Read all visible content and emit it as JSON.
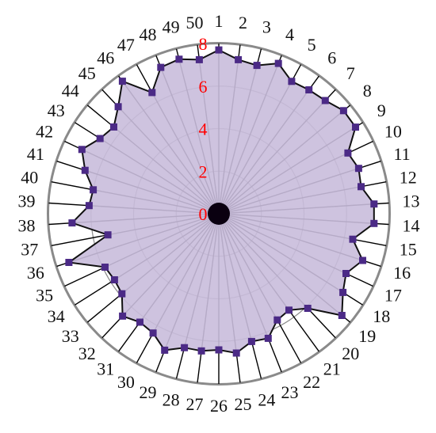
{
  "chart_data": {
    "type": "radar",
    "title": "",
    "categories": [
      "1",
      "2",
      "3",
      "4",
      "5",
      "6",
      "7",
      "8",
      "9",
      "10",
      "11",
      "12",
      "13",
      "14",
      "15",
      "16",
      "17",
      "18",
      "19",
      "20",
      "21",
      "22",
      "23",
      "24",
      "25",
      "26",
      "27",
      "28",
      "29",
      "30",
      "31",
      "32",
      "33",
      "34",
      "35",
      "36",
      "37",
      "38",
      "39",
      "40",
      "41",
      "42",
      "43",
      "44",
      "45",
      "46",
      "47",
      "48",
      "49",
      "50"
    ],
    "series": [
      {
        "values": [
          7.7,
          7.3,
          7.2,
          7.6,
          7.1,
          7.2,
          7.3,
          7.6,
          7.6,
          6.7,
          6.9,
          6.8,
          7.3,
          7.3,
          6.4,
          7.1,
          6.6,
          6.9,
          7.5,
          6.1,
          5.6,
          5.7,
          6.3,
          6.2,
          6.6,
          6.4,
          6.5,
          6.5,
          6.9,
          6.4,
          6.3,
          6.6,
          5.9,
          5.8,
          5.9,
          7.4,
          5.3,
          6.9,
          6.1,
          6.0,
          6.6,
          7.1,
          6.6,
          6.4,
          6.9,
          7.7,
          6.5,
          7.4,
          7.5,
          7.3
        ],
        "color": "#4b2a86",
        "fill": "#c9bcdc"
      }
    ],
    "rlim": [
      0,
      8
    ],
    "ticks": [
      0,
      2,
      4,
      6,
      8
    ],
    "grid": true,
    "tick_color": "#ff0000",
    "marker": "square"
  }
}
